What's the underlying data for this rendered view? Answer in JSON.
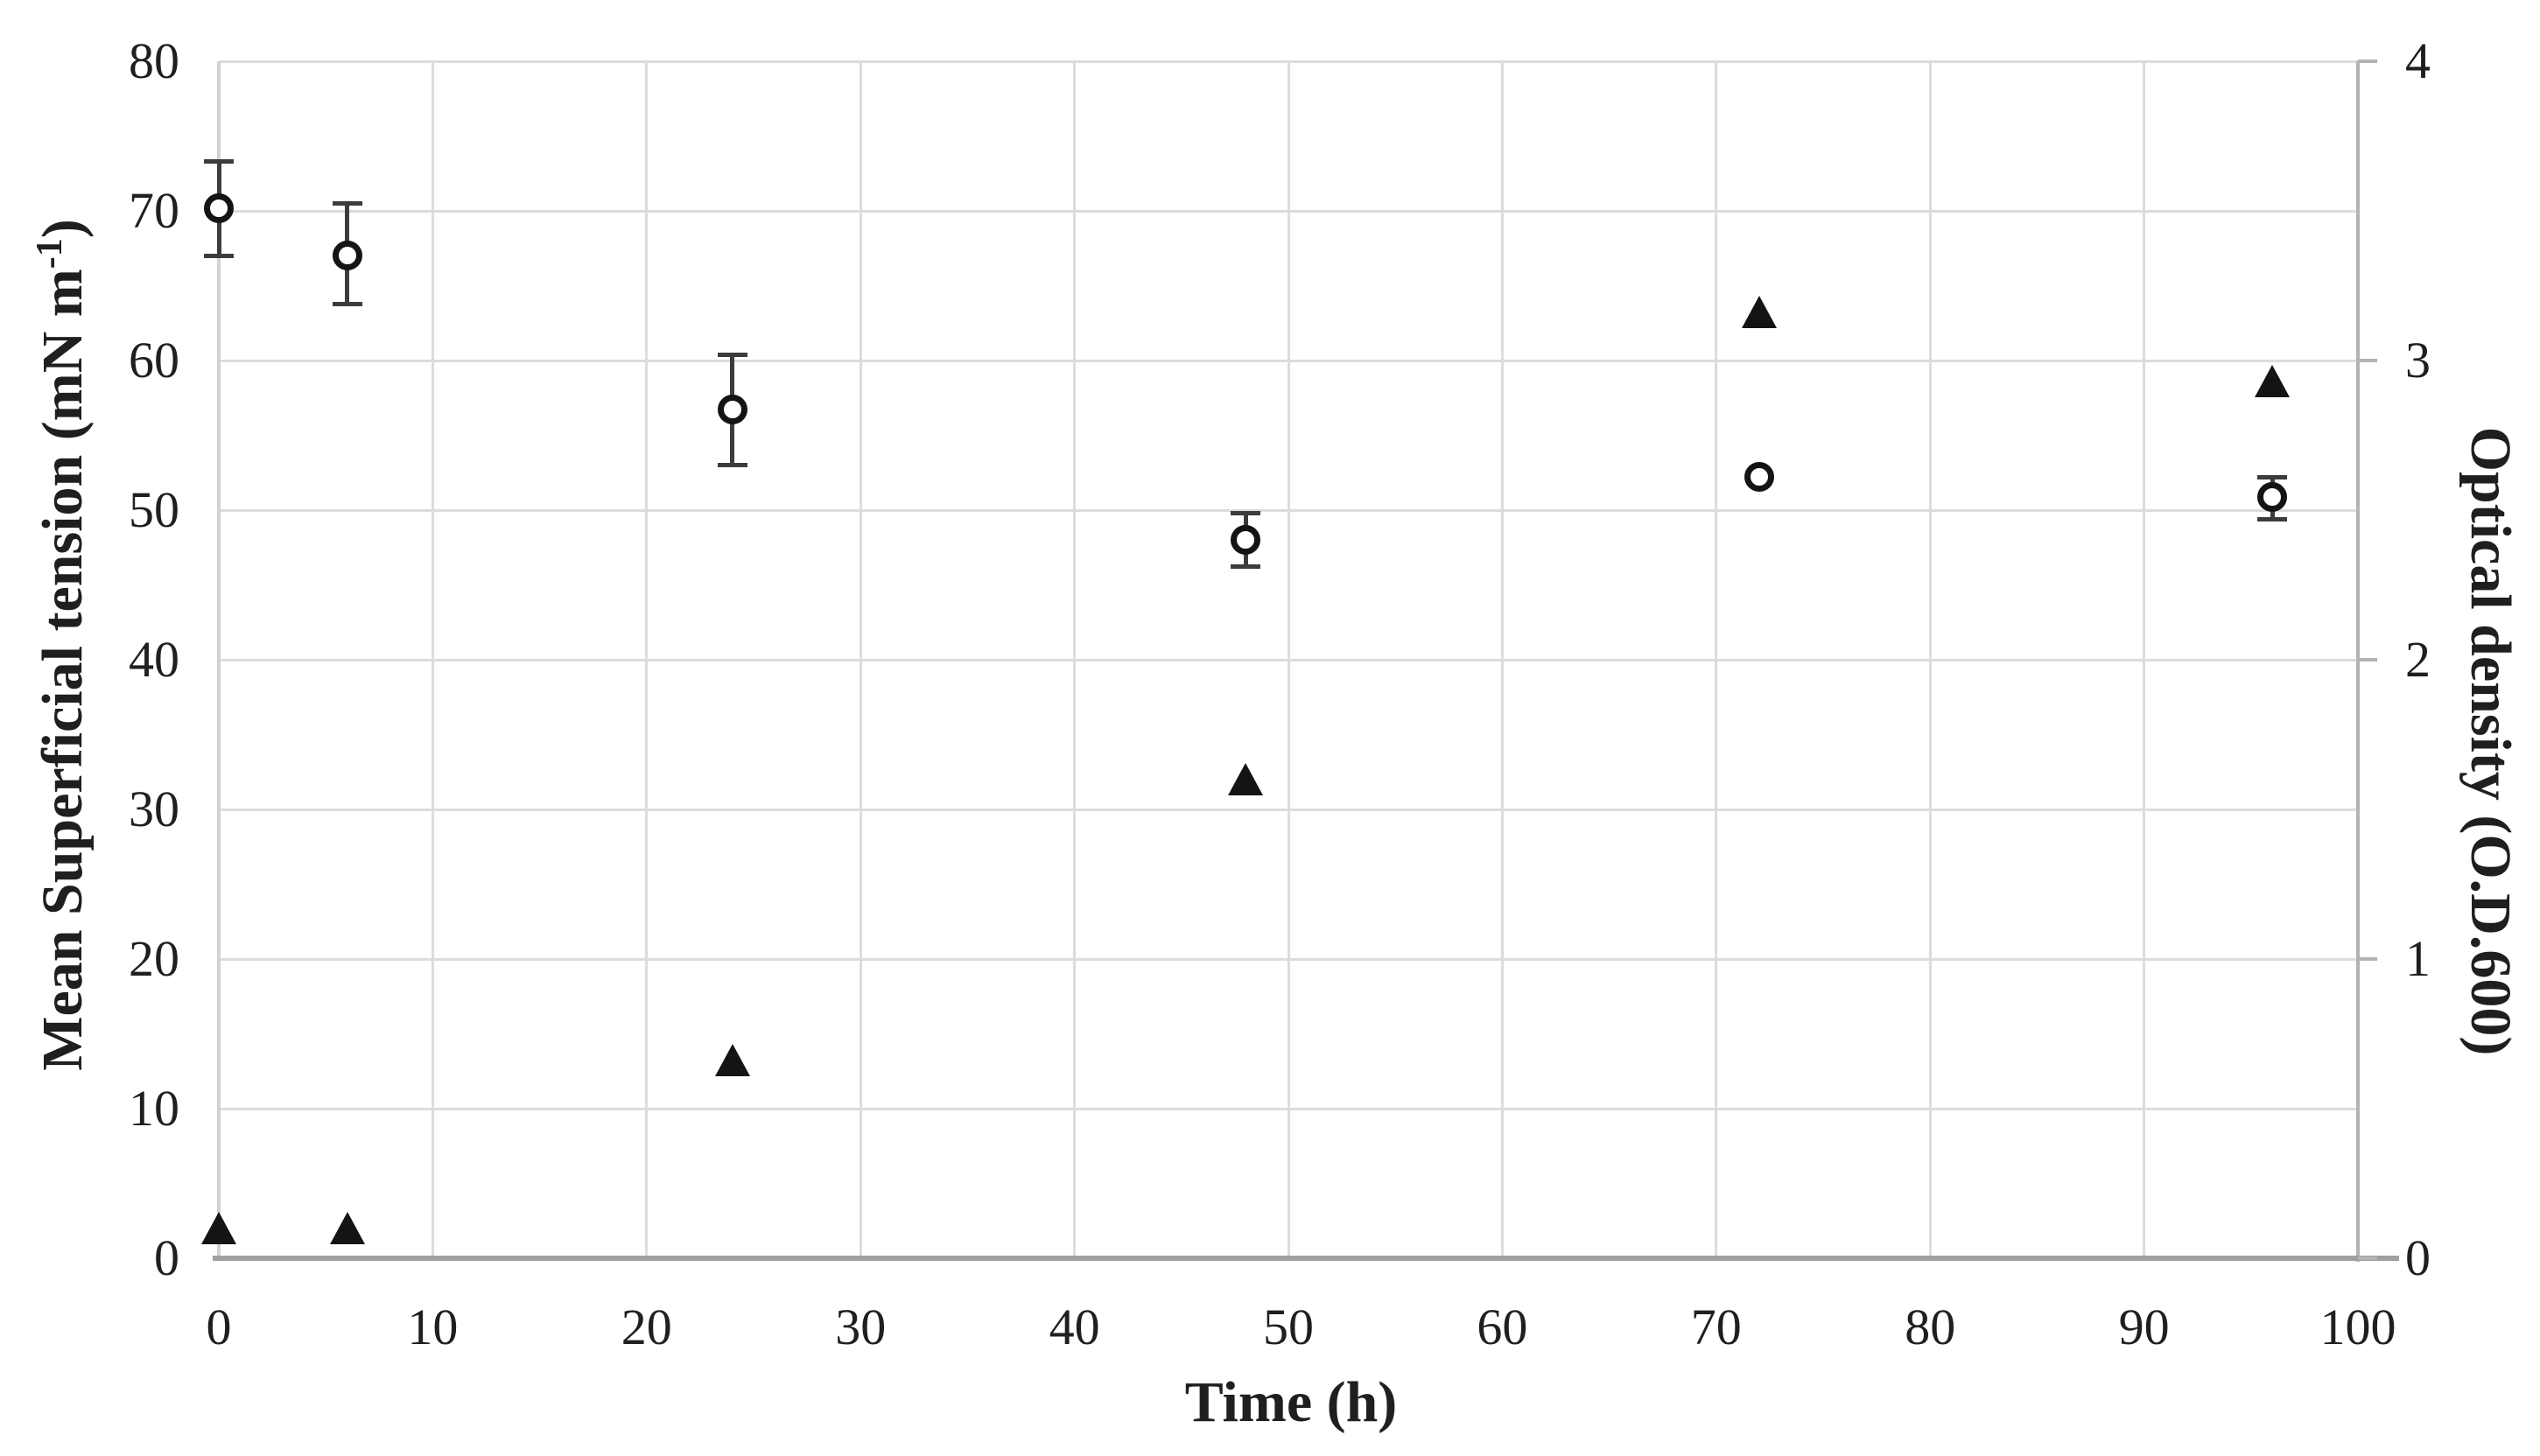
{
  "chart_data": {
    "type": "scatter",
    "title": "",
    "xlabel": "Time (h)",
    "ylabel_left": {
      "prefix": "Mean Superficial tension (mN m",
      "sup": "-1",
      "suffix": ")"
    },
    "ylabel_right": "Optical density (O.D.600)",
    "x_ticks": [
      0,
      10,
      20,
      30,
      40,
      50,
      60,
      70,
      80,
      90,
      100
    ],
    "y_left_ticks": [
      0,
      10,
      20,
      30,
      40,
      50,
      60,
      70,
      80
    ],
    "y_right_ticks": [
      0,
      1,
      2,
      3,
      4
    ],
    "xlim": [
      0,
      100
    ],
    "ylim_left": [
      0,
      80
    ],
    "ylim_right": [
      0,
      4
    ],
    "grid": true,
    "legend": "none",
    "colors": {
      "marker": "#141414",
      "error_bar": "#3c3c3c",
      "gridline": "#dcdcdc",
      "x_axis_line": "#a0a0a0",
      "right_axis_line": "#b3b3b3",
      "text": "#1f1f1f",
      "background": "#ffffff"
    },
    "series": [
      {
        "name": "Mean superficial tension",
        "marker": "open-circle",
        "axis": "left",
        "points": [
          {
            "x": 0,
            "y": 70.2,
            "err_up": 3.1,
            "err_dn": 3.2
          },
          {
            "x": 6,
            "y": 67.0,
            "err_up": 3.5,
            "err_dn": 3.2
          },
          {
            "x": 24,
            "y": 56.7,
            "err_up": 3.7,
            "err_dn": 3.7
          },
          {
            "x": 48,
            "y": 48.0,
            "err_up": 1.8,
            "err_dn": 1.8
          },
          {
            "x": 72,
            "y": 52.2,
            "err_up": 0,
            "err_dn": 0
          },
          {
            "x": 96,
            "y": 50.9,
            "err_up": 1.3,
            "err_dn": 1.5
          }
        ]
      },
      {
        "name": "Optical density",
        "marker": "filled-triangle",
        "axis": "right",
        "points": [
          {
            "x": 0,
            "y": 0.1
          },
          {
            "x": 6,
            "y": 0.1
          },
          {
            "x": 24,
            "y": 0.66
          },
          {
            "x": 48,
            "y": 1.6
          },
          {
            "x": 72,
            "y": 3.16
          },
          {
            "x": 96,
            "y": 2.93
          }
        ]
      }
    ]
  }
}
